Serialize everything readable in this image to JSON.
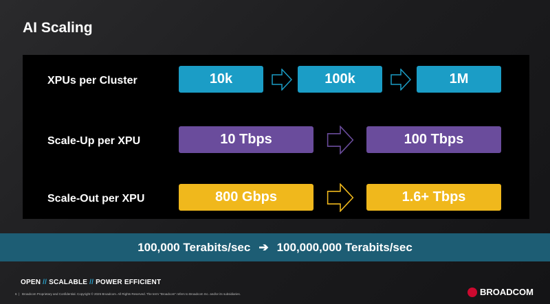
{
  "title": "AI Scaling",
  "colors": {
    "xpu": "#1b9dc6",
    "scaleup": "#6a4c9c",
    "scaleout": "#f0b81c",
    "band": "#1d5d74"
  },
  "rows": [
    {
      "label": "XPUs per Cluster",
      "values": [
        "10k",
        "100k",
        "1M"
      ]
    },
    {
      "label": "Scale-Up per XPU",
      "values": [
        "10 Tbps",
        "100 Tbps"
      ]
    },
    {
      "label": "Scale-Out per XPU",
      "values": [
        "800 Gbps",
        "1.6+ Tbps"
      ]
    }
  ],
  "band": {
    "from": "100,000 Terabits/sec",
    "arrow": "➔",
    "to": "100,000,000 Terabits/sec"
  },
  "footer": {
    "tag": [
      "OPEN",
      "SCALABLE",
      "POWER EFFICIENT"
    ],
    "sep": "//",
    "page": "6",
    "legal": "Broadcom Proprietary and Confidential.  Copyright © 2025 Broadcom.  All Rights Reserved. The term \"Broadcom\" refers to Broadcom Inc. and/or its subsidiaries.",
    "logo": "BROADCOM"
  }
}
